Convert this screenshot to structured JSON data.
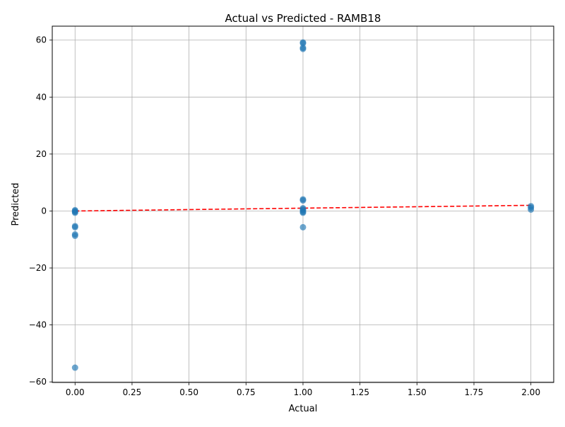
{
  "chart_data": {
    "type": "scatter",
    "title": "Actual vs Predicted - RAMB18",
    "xlabel": "Actual",
    "ylabel": "Predicted",
    "xlim": [
      -0.1,
      2.1
    ],
    "ylim": [
      -60.2,
      64.9
    ],
    "xticks": [
      0.0,
      0.25,
      0.5,
      0.75,
      1.0,
      1.25,
      1.5,
      1.75,
      2.0
    ],
    "xtick_labels": [
      "0.00",
      "0.25",
      "0.50",
      "0.75",
      "1.00",
      "1.25",
      "1.50",
      "1.75",
      "2.00"
    ],
    "yticks": [
      -60,
      -40,
      -20,
      0,
      20,
      40,
      60
    ],
    "ytick_labels": [
      "−60",
      "−40",
      "−20",
      "0",
      "20",
      "40",
      "60"
    ],
    "grid": true,
    "colors": {
      "points": "#1f77b4",
      "reference_line": "#ff0000",
      "grid": "#b0b0b0"
    },
    "series": [
      {
        "points": [
          {
            "x": 0,
            "y": 0.3
          },
          {
            "x": 0,
            "y": 0.0
          },
          {
            "x": 0,
            "y": -0.3
          },
          {
            "x": 0,
            "y": -0.6
          },
          {
            "x": 0,
            "y": -5.3
          },
          {
            "x": 0,
            "y": -5.7
          },
          {
            "x": 0,
            "y": -8.2
          },
          {
            "x": 0,
            "y": -8.7
          },
          {
            "x": 0,
            "y": -55.0
          },
          {
            "x": 1,
            "y": 59.2
          },
          {
            "x": 1,
            "y": 58.9
          },
          {
            "x": 1,
            "y": 57.3
          },
          {
            "x": 1,
            "y": 56.9
          },
          {
            "x": 1,
            "y": 4.1
          },
          {
            "x": 1,
            "y": 3.7
          },
          {
            "x": 1,
            "y": 1.0
          },
          {
            "x": 1,
            "y": 0.6
          },
          {
            "x": 1,
            "y": 0.2
          },
          {
            "x": 1,
            "y": -0.3
          },
          {
            "x": 1,
            "y": -0.6
          },
          {
            "x": 1,
            "y": -5.7
          },
          {
            "x": 2,
            "y": 1.7
          },
          {
            "x": 2,
            "y": 1.2
          },
          {
            "x": 2,
            "y": 0.5
          }
        ]
      }
    ],
    "reference_line": {
      "x": [
        0,
        2
      ],
      "y": [
        0,
        2
      ],
      "style": "dashed"
    }
  }
}
